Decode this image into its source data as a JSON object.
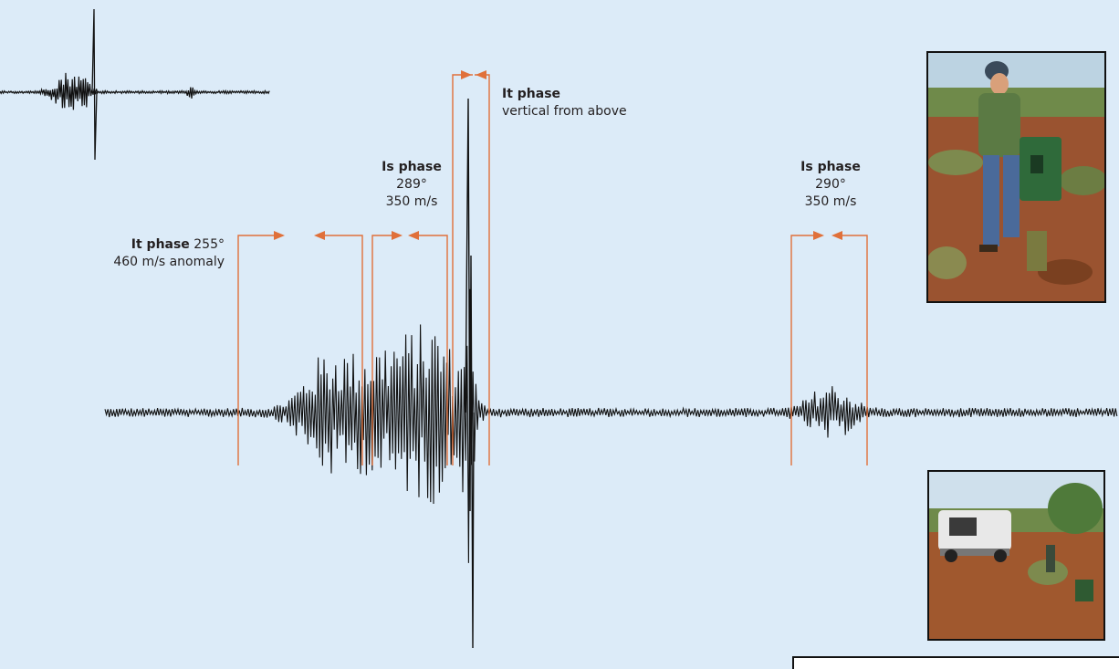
{
  "colors": {
    "background": "#dcebf8",
    "trace": "#111111",
    "marker": "#e0703a"
  },
  "labels": {
    "it_phase_1": {
      "title": "It phase",
      "detail": "255°",
      "line2": "460 m/s anomaly"
    },
    "is_phase_1": {
      "title": "Is phase",
      "line2": "289°",
      "line3": "350 m/s"
    },
    "it_phase_2": {
      "title": "It phase",
      "line2": "vertical from above"
    },
    "is_phase_2": {
      "title": "Is phase",
      "line2": "290°",
      "line3": "350 m/s"
    }
  },
  "photos": [
    {
      "name": "photo-person-with-seismometer-case"
    },
    {
      "name": "photo-vehicle-field-station"
    }
  ]
}
